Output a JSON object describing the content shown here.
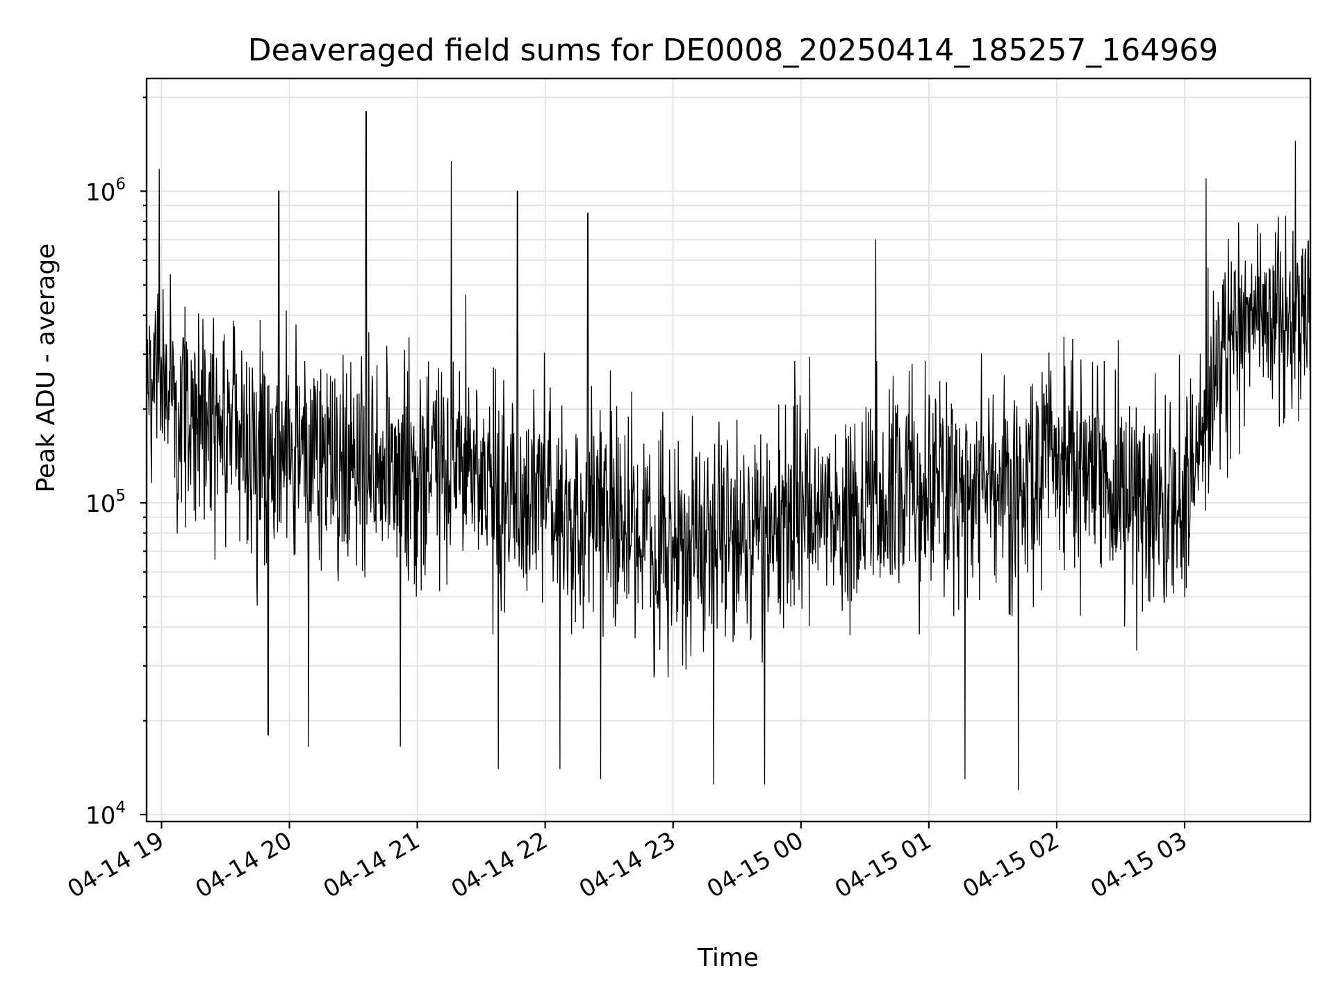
{
  "chart_data": {
    "type": "line",
    "title": "Deaveraged field sums for DE0008_20250414_185257_164969",
    "xlabel": "Time",
    "ylabel": "Peak ADU - average",
    "yscale": "log",
    "grid": true,
    "xlim": [
      "2025-04-14 18:53",
      "2025-04-15 03:59"
    ],
    "ylim": [
      9500,
      2300000
    ],
    "xticks": [
      "04-14 19",
      "04-14 20",
      "04-14 21",
      "04-14 22",
      "04-14 23",
      "04-15 00",
      "04-15 01",
      "04-15 02",
      "04-15 03"
    ],
    "yticks": [
      {
        "base": "10",
        "exp": "4"
      },
      {
        "base": "10",
        "exp": "5"
      },
      {
        "base": "10",
        "exp": "6"
      }
    ],
    "series_color": "#000000",
    "series": [
      {
        "x": [
          "2025-04-14 18:53",
          "2025-04-14 19:05",
          "2025-04-14 19:15",
          "2025-04-14 19:25",
          "2025-04-14 19:35",
          "2025-04-14 19:45",
          "2025-04-14 19:55",
          "2025-04-14 20:10",
          "2025-04-14 20:25",
          "2025-04-14 20:40",
          "2025-04-14 20:55",
          "2025-04-14 21:10",
          "2025-04-14 21:25",
          "2025-04-14 21:40",
          "2025-04-14 22:00",
          "2025-04-14 22:20",
          "2025-04-14 22:40",
          "2025-04-14 23:00",
          "2025-04-14 23:20",
          "2025-04-14 23:40",
          "2025-04-15 00:00",
          "2025-04-15 00:20",
          "2025-04-15 00:40",
          "2025-04-15 01:00",
          "2025-04-15 01:20",
          "2025-04-15 01:40",
          "2025-04-15 02:00",
          "2025-04-15 02:20",
          "2025-04-15 02:40",
          "2025-04-15 03:00",
          "2025-04-15 03:10",
          "2025-04-15 03:20",
          "2025-04-15 03:30",
          "2025-04-15 03:40",
          "2025-04-15 03:50",
          "2025-04-15 03:59"
        ],
        "values": [
          300000,
          230000,
          200000,
          200000,
          170000,
          140000,
          150000,
          130000,
          140000,
          120000,
          115000,
          150000,
          130000,
          110000,
          100000,
          95000,
          80000,
          70000,
          75000,
          80000,
          90000,
          95000,
          100000,
          110000,
          120000,
          110000,
          130000,
          120000,
          100000,
          95000,
          180000,
          350000,
          360000,
          400000,
          420000,
          450000
        ]
      }
    ],
    "spikes": [
      {
        "x": "2025-04-14 18:59",
        "value": 1180000
      },
      {
        "x": "2025-04-14 19:55",
        "value": 1000000
      },
      {
        "x": "2025-04-14 20:36",
        "value": 1800000
      },
      {
        "x": "2025-04-14 21:16",
        "value": 1250000
      },
      {
        "x": "2025-04-14 21:47",
        "value": 1000000
      },
      {
        "x": "2025-04-14 22:20",
        "value": 850000
      },
      {
        "x": "2025-04-15 00:35",
        "value": 700000
      },
      {
        "x": "2025-04-15 03:10",
        "value": 1100000
      },
      {
        "x": "2025-04-15 03:52",
        "value": 1450000
      },
      {
        "x": "2025-04-14 19:50",
        "value": 18000
      },
      {
        "x": "2025-04-14 20:09",
        "value": 16500
      },
      {
        "x": "2025-04-14 20:52",
        "value": 16500
      },
      {
        "x": "2025-04-14 21:38",
        "value": 14000
      },
      {
        "x": "2025-04-14 22:07",
        "value": 14000
      },
      {
        "x": "2025-04-14 22:26",
        "value": 13000
      },
      {
        "x": "2025-04-14 23:19",
        "value": 12500
      },
      {
        "x": "2025-04-14 23:43",
        "value": 12500
      },
      {
        "x": "2025-04-15 01:17",
        "value": 13000
      },
      {
        "x": "2025-04-15 01:42",
        "value": 12000
      }
    ]
  }
}
